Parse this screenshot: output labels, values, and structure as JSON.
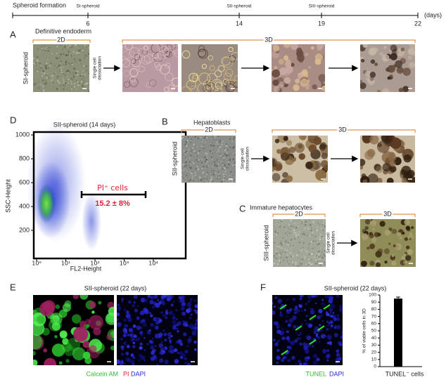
{
  "timeline": {
    "title": "Spheroid formation",
    "unit": "(days)",
    "stages": [
      {
        "label": "SI-spheroid",
        "day": 6
      },
      {
        "label": "SII-spheroid",
        "day": 14
      },
      {
        "label": "SIII-spheroid",
        "day": 19
      },
      {
        "day": 22
      }
    ]
  },
  "panel_a": {
    "letter": "A",
    "stage": "Definitive endoderm",
    "label_2d": "2D",
    "label_3d": "3D",
    "row_label": "SI-spheroid",
    "arrow_text": [
      "Single cell",
      "dissociation"
    ]
  },
  "panel_b": {
    "letter": "B",
    "stage": "Hepatoblasts",
    "label_2d": "2D",
    "label_3d": "3D",
    "row_label": "SII-spheroid",
    "arrow_text": [
      "Single cell",
      "dissociation"
    ]
  },
  "panel_c": {
    "letter": "C",
    "stage": "Immature hepatocytes",
    "label_2d": "2D",
    "label_3d": "3D",
    "row_label": "SIII-spheroid",
    "arrow_text": [
      "Single cell",
      "dissociation"
    ]
  },
  "panel_d": {
    "letter": "D",
    "chart": {
      "type": "scatter",
      "title": "SII-spheroid (14 days)",
      "x_label": "FL2-Height",
      "y_label": "SSC-Height",
      "x_scale": "log",
      "xlim": [
        1,
        100000
      ],
      "ylim": [
        0,
        1024
      ],
      "xticks": [
        {
          "value": 1,
          "label": "10⁰"
        },
        {
          "value": 10,
          "label": "10¹"
        },
        {
          "value": 100,
          "label": "10²"
        },
        {
          "value": 1000,
          "label": "10³"
        },
        {
          "value": 10000,
          "label": "10⁴"
        }
      ],
      "yticks": [
        200,
        400,
        600,
        800,
        1000
      ],
      "annotation": {
        "label": "PI⁺ cells",
        "value_text": "15.2 ± 8%",
        "color": "#e0203a"
      }
    }
  },
  "panel_e": {
    "letter": "E",
    "title": "SII-spheroid (22 days)",
    "stains": [
      {
        "name": "Calcein AM",
        "color": "#2fc02f"
      },
      {
        "name": "PI",
        "color": "#e0203a"
      },
      {
        "name": "DAPI",
        "color": "#2b2bd8"
      }
    ]
  },
  "panel_f": {
    "letter": "F",
    "title": "SII-spheroid (22 days)",
    "stains": [
      {
        "name": "TUNEL",
        "color": "#2fc02f"
      },
      {
        "name": "DAPI",
        "color": "#2b2bd8"
      }
    ],
    "chart": {
      "type": "bar",
      "y_label": "% of viable cells in 3D",
      "categories": [
        "TUNEL⁻ cells"
      ],
      "values": [
        95
      ],
      "errors": [
        2
      ],
      "color": "#000000",
      "ylim": [
        0,
        100
      ],
      "yticks": [
        0,
        10,
        20,
        30,
        40,
        50,
        60,
        70,
        80,
        90,
        100
      ]
    }
  }
}
